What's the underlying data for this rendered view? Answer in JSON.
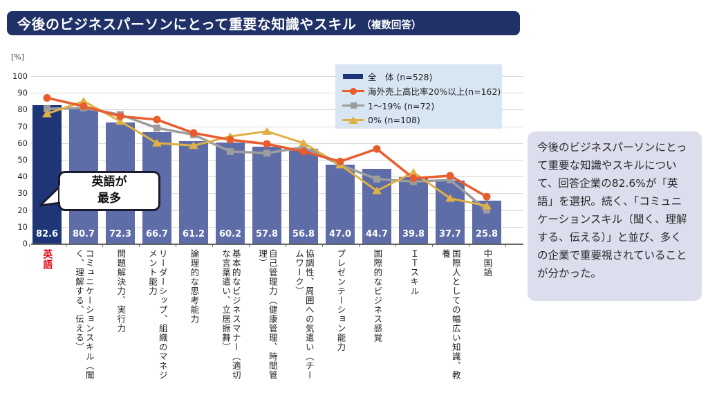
{
  "title": {
    "main": "今後のビジネスパーソンにとって重要な知識やスキル",
    "suffix": "（複数回答）"
  },
  "colors": {
    "title_bg": "#1f3167",
    "bar_normal": "#5e6ca7",
    "bar_highlight": "#1e3578",
    "orange": "#e85c2e",
    "gray": "#9d9d9d",
    "yellow": "#dfb044",
    "legend_bg": "#d8e6f4",
    "note_bg": "#dcdded",
    "highlight_red": "#e60012",
    "gridline": "#d8d8d8"
  },
  "legend": {
    "items": [
      {
        "label": "全　体 (n=528)",
        "marker": "bar",
        "color": "#1e3578"
      },
      {
        "label": "海外売上高比率20%以上(n=162)",
        "marker": "circle",
        "color": "#e85c2e"
      },
      {
        "label": "1～19% (n=72)",
        "marker": "square",
        "color": "#9d9d9d"
      },
      {
        "label": "0% (n=108)",
        "marker": "triangle",
        "color": "#dfb044"
      }
    ]
  },
  "chart_data": {
    "type": "bar",
    "subtype": "bar-with-line-overlays",
    "unit_label": "[%]",
    "ylim": [
      0,
      100
    ],
    "y_ticks": [
      0,
      10,
      20,
      30,
      40,
      50,
      60,
      70,
      80,
      90,
      100
    ],
    "grid": true,
    "legend_position": "top-right",
    "categories": [
      {
        "label": "英語",
        "highlight": true
      },
      {
        "label": "コミュニケーションスキル（聞く、理解する、伝える）",
        "highlight": false
      },
      {
        "label": "問題解決力、実行力",
        "highlight": false
      },
      {
        "label": "リーダーシップ、組織のマネジメント能力",
        "highlight": false
      },
      {
        "label": "論理的な思考能力",
        "highlight": false
      },
      {
        "label": "基本的なビジネスマナー（適切な言葉遣い、立居振舞）",
        "highlight": false
      },
      {
        "label": "自己管理力（健康管理、時間管理）",
        "highlight": false
      },
      {
        "label": "協調性、周囲への気遣い（チームワーク）",
        "highlight": false
      },
      {
        "label": "プレゼンテーション能力",
        "highlight": false
      },
      {
        "label": "国際的なビジネス感覚",
        "highlight": false
      },
      {
        "label": "ＩＴスキル",
        "highlight": false
      },
      {
        "label": "国際人としての幅広い知識、教養",
        "highlight": false
      },
      {
        "label": "中国語",
        "highlight": false
      }
    ],
    "bar_series": {
      "name": "全　体 (n=528)",
      "values": [
        82.6,
        80.7,
        72.3,
        66.7,
        61.2,
        60.2,
        57.8,
        56.8,
        47.0,
        44.7,
        39.8,
        37.7,
        25.8
      ]
    },
    "line_series": [
      {
        "name": "海外売上高比率20%以上(n=162)",
        "marker": "circle",
        "color": "#e85c2e",
        "values": [
          87,
          82,
          76,
          74,
          66,
          62,
          59.5,
          55,
          49,
          56.5,
          39,
          40.5,
          28
        ]
      },
      {
        "name": "1～19% (n=72)",
        "marker": "square",
        "color": "#9d9d9d",
        "values": [
          80.5,
          81,
          77,
          69,
          65,
          55,
          54,
          57.5,
          47,
          38.5,
          37,
          38,
          20
        ]
      },
      {
        "name": "0% (n=108)",
        "marker": "triangle",
        "color": "#dfb044",
        "values": [
          77.5,
          85,
          73,
          60,
          58.5,
          64,
          67,
          60,
          47,
          31.5,
          42.5,
          27,
          22.5
        ]
      }
    ]
  },
  "callout": {
    "line1": "英語が",
    "line2": "最多"
  },
  "note": {
    "text": "今後のビジネスパーソンにとって重要な知識やスキルについて、回答企業の82.6%が「英語」を選択。続く、「コミュニケーションスキル（聞く、理解する、伝える）」と並び、多くの企業で重要視されていることが分かった。"
  }
}
